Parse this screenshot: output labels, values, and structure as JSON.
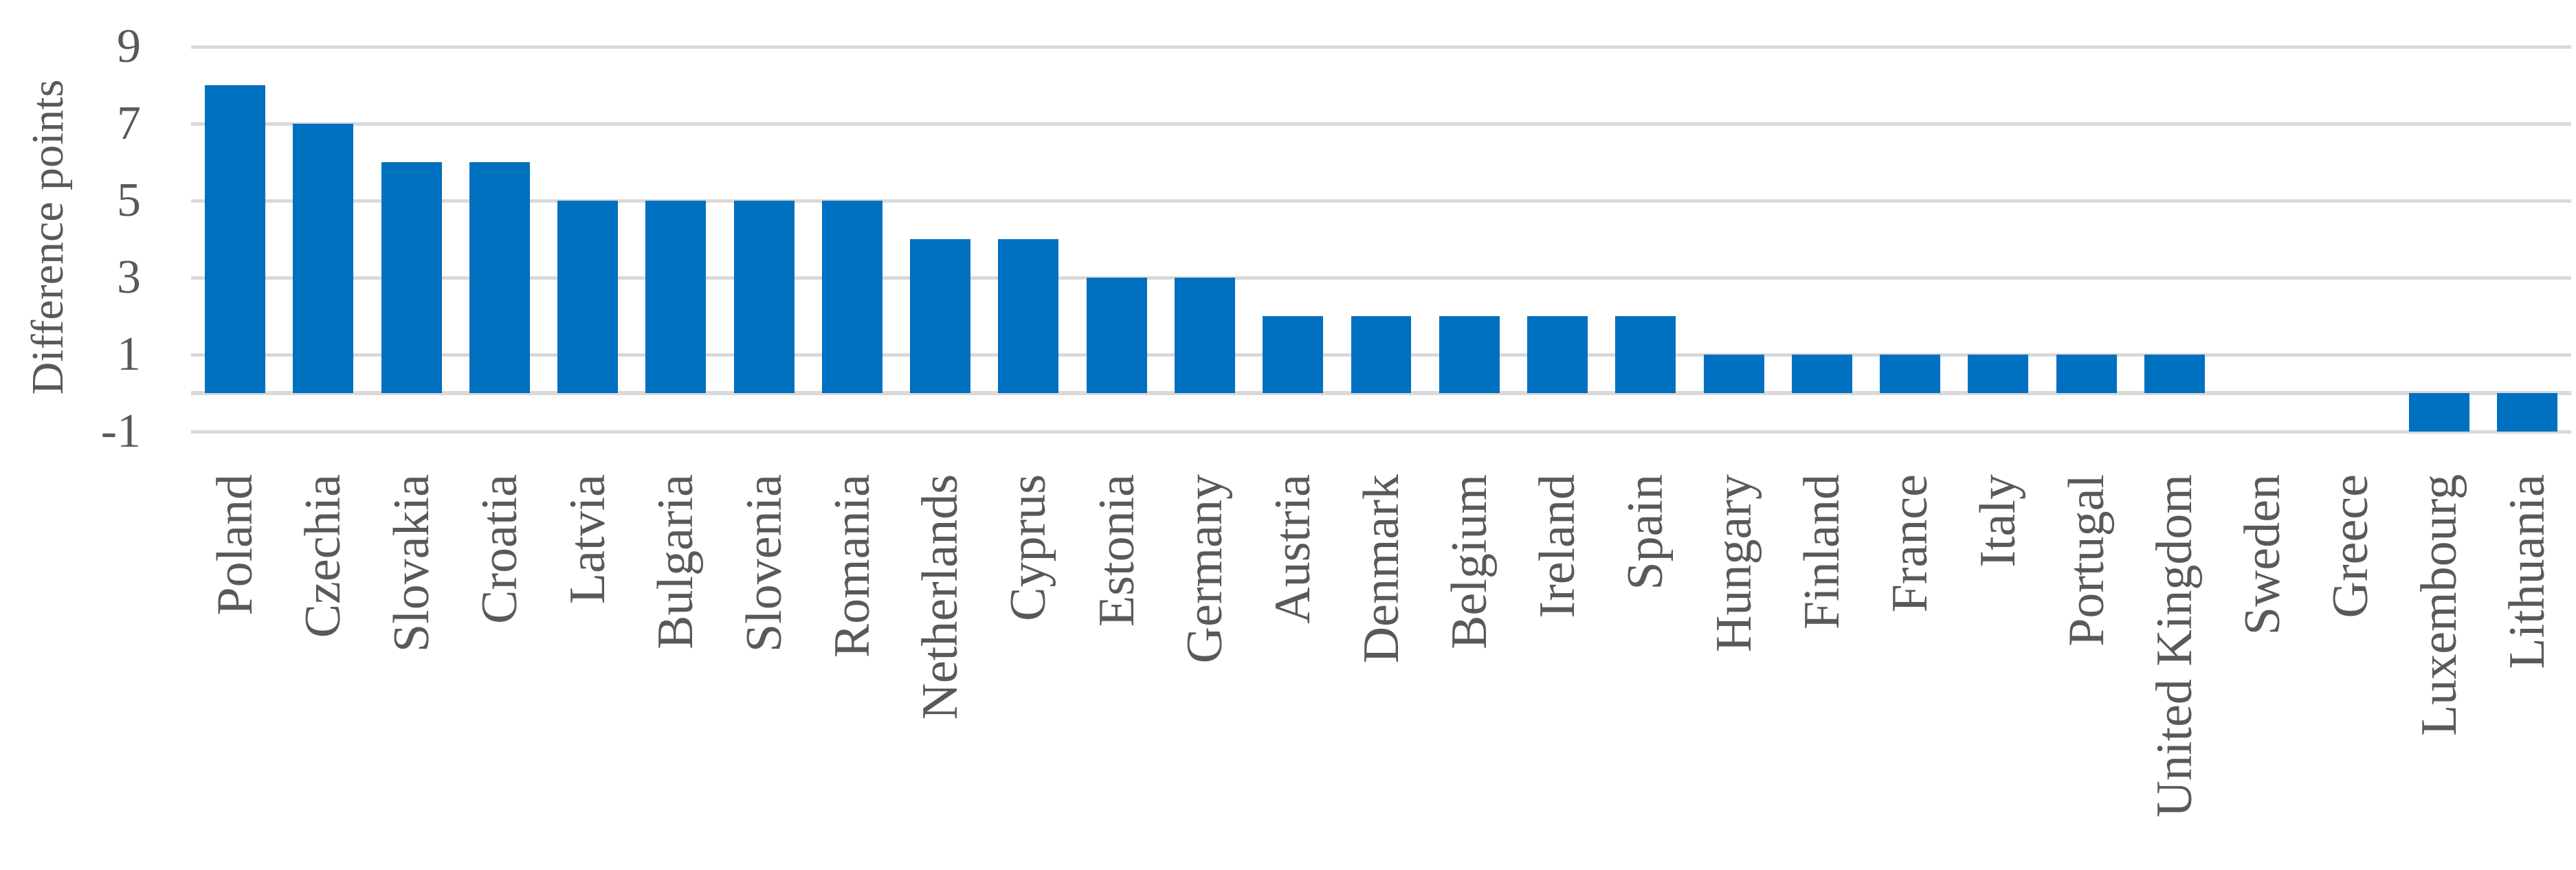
{
  "chart_data": {
    "type": "bar",
    "title": "",
    "xlabel": "",
    "ylabel": "Difference points",
    "categories": [
      "Poland",
      "Czechia",
      "Slovakia",
      "Croatia",
      "Latvia",
      "Bulgaria",
      "Slovenia",
      "Romania",
      "Netherlands",
      "Cyprus",
      "Estonia",
      "Germany",
      "Austria",
      "Denmark",
      "Belgium",
      "Ireland",
      "Spain",
      "Hungary",
      "Finland",
      "France",
      "Italy",
      "Portugal",
      "United Kingdom",
      "Sweden",
      "Greece",
      "Luxembourg",
      "Lithuania"
    ],
    "values": [
      8,
      7,
      6,
      6,
      5,
      5,
      5,
      5,
      4,
      4,
      3,
      3,
      2,
      2,
      2,
      2,
      2,
      1,
      1,
      1,
      1,
      1,
      1,
      0,
      0,
      -1,
      -1
    ],
    "yticks": [
      9,
      7,
      5,
      3,
      1,
      -1
    ],
    "ylim": [
      -1.5,
      9.5
    ],
    "grid": true,
    "legend_position": "none",
    "colors": {
      "bar": "#0070C0",
      "gridline": "#D9D9D9",
      "zero_line": "#D9D9D9",
      "text": "#595959",
      "background": "#FFFFFF"
    }
  }
}
